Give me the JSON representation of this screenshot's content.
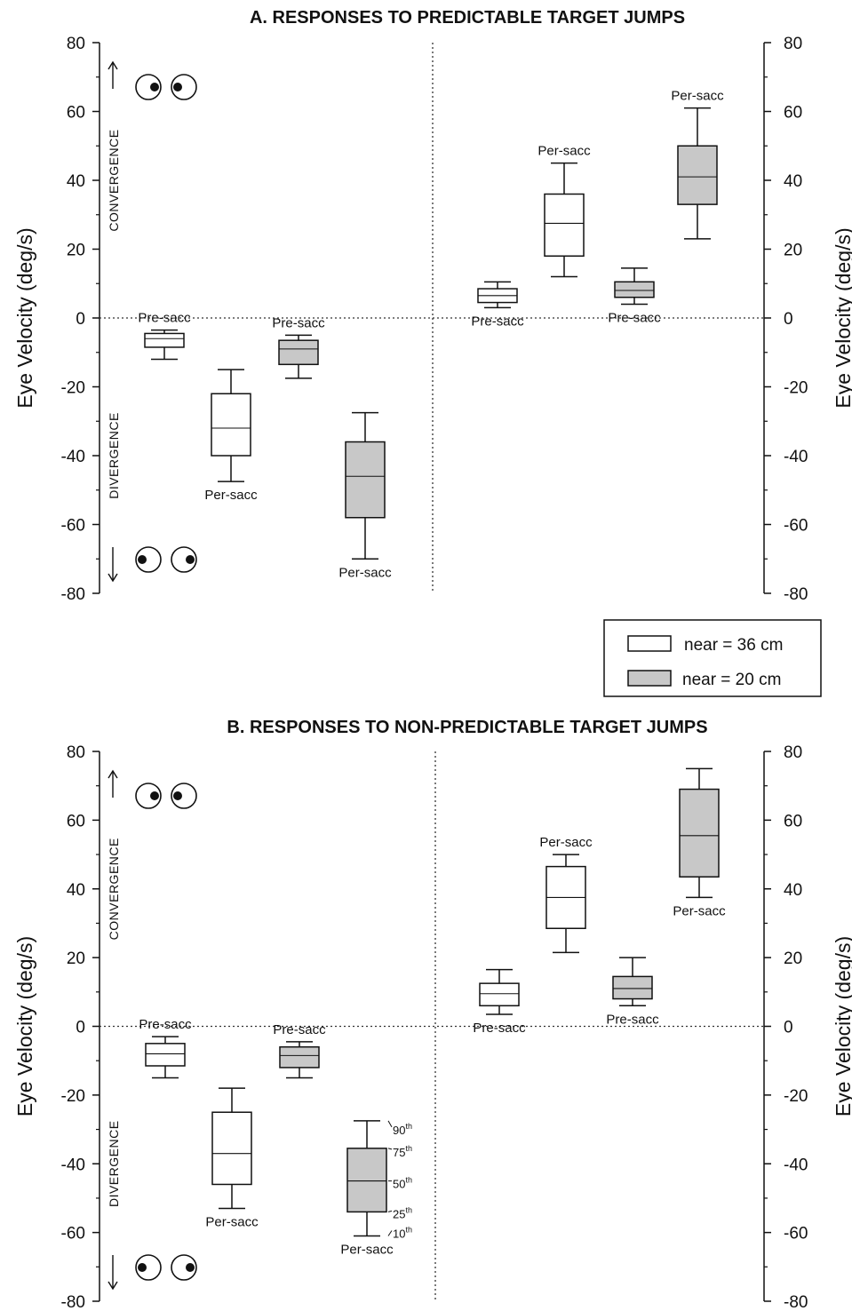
{
  "legend": {
    "items": [
      {
        "label": "near = 36 cm",
        "fill": "#ffffff"
      },
      {
        "label": "near = 20 cm",
        "fill": "#c8c8c8"
      }
    ]
  },
  "chart_data": [
    {
      "type": "boxplot",
      "title": "A. RESPONSES TO PREDICTABLE TARGET JUMPS",
      "ylabel": "Eye Velocity (deg/s)",
      "ylabel_right": "Eye Velocity (deg/s)",
      "ylim": [
        -80,
        80
      ],
      "yticks": [
        "80",
        "60",
        "40",
        "20",
        "0",
        "-20",
        "-40",
        "-60",
        "-80"
      ],
      "side_labels": {
        "upper": "CONVERGENCE",
        "lower": "DIVERGENCE"
      },
      "boxes": [
        {
          "label": "Pre-sacc",
          "condition": "near = 36 cm",
          "quadrant": "divergence",
          "p10": -12,
          "p25": -8.5,
          "p50": -6,
          "p75": -4.5,
          "p90": -3.5
        },
        {
          "label": "Per-sacc",
          "condition": "near = 36 cm",
          "quadrant": "divergence",
          "p10": -47.5,
          "p25": -40,
          "p50": -32,
          "p75": -22,
          "p90": -15
        },
        {
          "label": "Pre-sacc",
          "condition": "near = 20 cm",
          "quadrant": "divergence",
          "p10": -17.5,
          "p25": -13.5,
          "p50": -9,
          "p75": -6.5,
          "p90": -5
        },
        {
          "label": "Per-sacc",
          "condition": "near = 20 cm",
          "quadrant": "divergence",
          "p10": -70,
          "p25": -58,
          "p50": -46,
          "p75": -36,
          "p90": -27.5
        },
        {
          "label": "Pre-sacc",
          "condition": "near = 36 cm",
          "quadrant": "convergence",
          "p10": 3,
          "p25": 4.5,
          "p50": 6.5,
          "p75": 8.5,
          "p90": 10.5
        },
        {
          "label": "Per-sacc",
          "condition": "near = 36 cm",
          "quadrant": "convergence",
          "p10": 12,
          "p25": 18,
          "p50": 27.5,
          "p75": 36,
          "p90": 45
        },
        {
          "label": "Pre-sacc",
          "condition": "near = 20 cm",
          "quadrant": "convergence",
          "p10": 4,
          "p25": 6,
          "p50": 8,
          "p75": 10.5,
          "p90": 14.5
        },
        {
          "label": "Per-sacc",
          "condition": "near = 20 cm",
          "quadrant": "convergence",
          "p10": 23,
          "p25": 33,
          "p50": 41,
          "p75": 50,
          "p90": 61
        }
      ]
    },
    {
      "type": "boxplot",
      "title": "B. RESPONSES TO NON-PREDICTABLE TARGET JUMPS",
      "ylabel": "Eye Velocity (deg/s)",
      "ylabel_right": "Eye Velocity (deg/s)",
      "ylim": [
        -80,
        80
      ],
      "yticks": [
        "80",
        "60",
        "40",
        "20",
        "0",
        "-20",
        "-40",
        "-60",
        "-80"
      ],
      "side_labels": {
        "upper": "CONVERGENCE",
        "lower": "DIVERGENCE"
      },
      "percentile_labels": [
        "90",
        "75",
        "50",
        "25",
        "10"
      ],
      "percentile_suffix": "th",
      "boxes": [
        {
          "label": "Pre-sacc",
          "condition": "near = 36 cm",
          "quadrant": "divergence",
          "p10": -15,
          "p25": -11.5,
          "p50": -8,
          "p75": -5,
          "p90": -3
        },
        {
          "label": "Per-sacc",
          "condition": "near = 36 cm",
          "quadrant": "divergence",
          "p10": -53,
          "p25": -46,
          "p50": -37,
          "p75": -25,
          "p90": -18
        },
        {
          "label": "Pre-sacc",
          "condition": "near = 20 cm",
          "quadrant": "divergence",
          "p10": -15,
          "p25": -12,
          "p50": -8.5,
          "p75": -6,
          "p90": -4.5
        },
        {
          "label": "Per-sacc",
          "condition": "near = 20 cm",
          "quadrant": "divergence",
          "p10": -61,
          "p25": -54,
          "p50": -45,
          "p75": -35.5,
          "p90": -27.5
        },
        {
          "label": "Pre-sacc",
          "condition": "near = 36 cm",
          "quadrant": "convergence",
          "p10": 3.5,
          "p25": 6,
          "p50": 9.5,
          "p75": 12.5,
          "p90": 16.5
        },
        {
          "label": "Per-sacc",
          "condition": "near = 36 cm",
          "quadrant": "convergence",
          "p10": 21.5,
          "p25": 28.5,
          "p50": 37.5,
          "p75": 46.5,
          "p90": 50
        },
        {
          "label": "Pre-sacc",
          "condition": "near = 20 cm",
          "quadrant": "convergence",
          "p10": 6,
          "p25": 8,
          "p50": 11,
          "p75": 14.5,
          "p90": 20
        },
        {
          "label": "Per-sacc",
          "condition": "near = 20 cm",
          "quadrant": "convergence",
          "p10": 37.5,
          "p25": 43.5,
          "p50": 55.5,
          "p75": 69,
          "p90": 75
        }
      ]
    }
  ]
}
